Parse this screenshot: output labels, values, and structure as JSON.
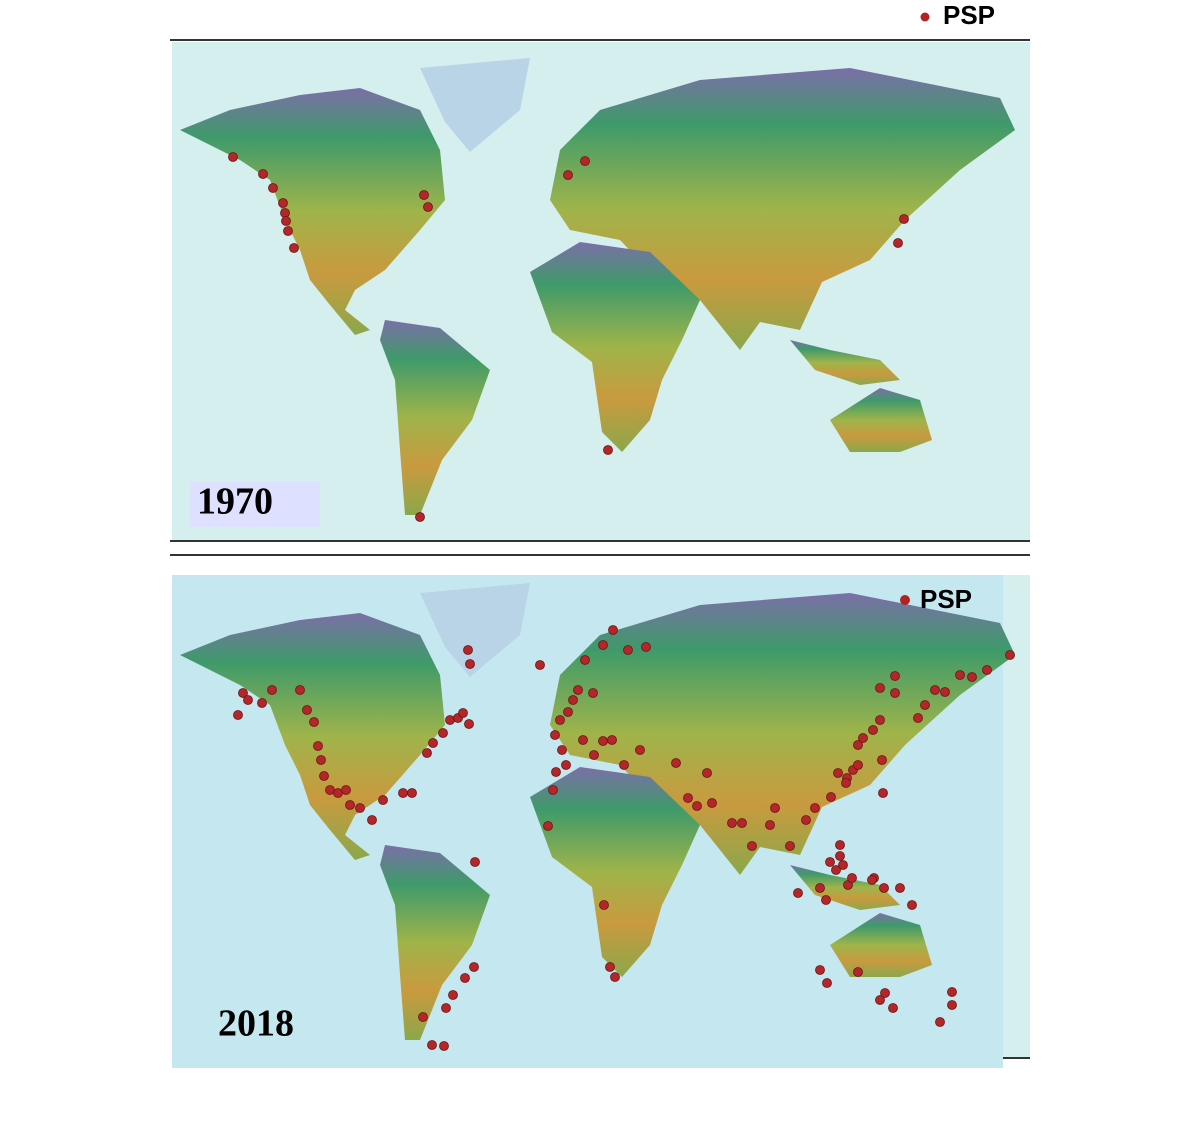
{
  "legend": {
    "label": "PSP"
  },
  "panels": [
    {
      "year": "1970"
    },
    {
      "year": "2018",
      "legend": "PSP"
    }
  ]
}
